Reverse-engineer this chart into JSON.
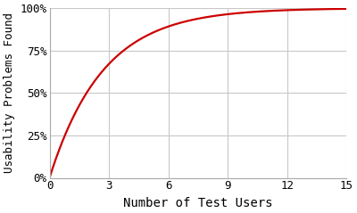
{
  "title": "",
  "xlabel": "Number of Test Users",
  "ylabel": "Usability Problems Found",
  "x_min": 0,
  "x_max": 15,
  "y_min": 0.0,
  "y_max": 1.0,
  "x_ticks": [
    0,
    3,
    6,
    9,
    12,
    15
  ],
  "y_ticks": [
    0.0,
    0.25,
    0.5,
    0.75,
    1.0
  ],
  "y_tick_labels": [
    "0%",
    "25%",
    "50%",
    "75%",
    "100%"
  ],
  "nielsen_p": 0.31,
  "line_color": "#cc0000",
  "line_width": 1.6,
  "grid_color": "#c8c8c8",
  "background_color": "#ffffff",
  "xlabel_fontsize": 10,
  "ylabel_fontsize": 9,
  "tick_fontsize": 9,
  "spine_color": "#aaaaaa"
}
